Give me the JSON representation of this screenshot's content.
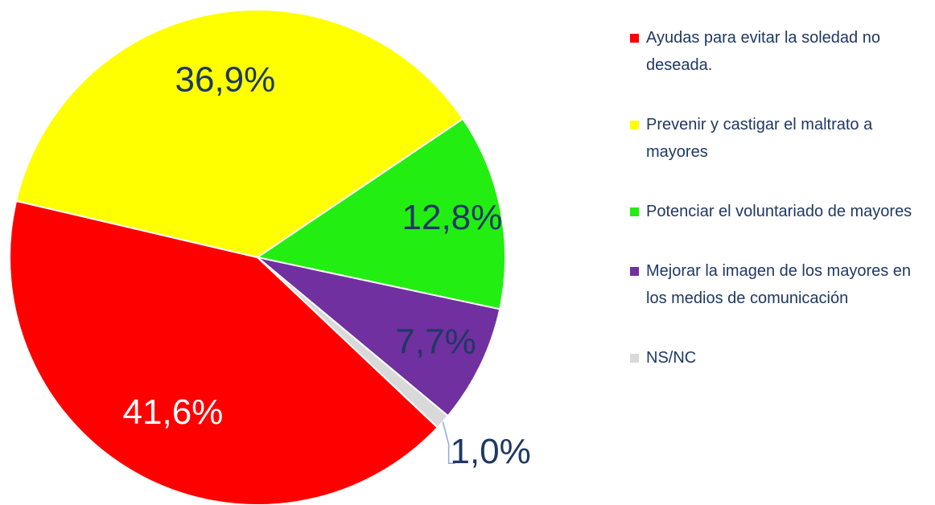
{
  "chart_data": {
    "type": "pie",
    "labels": [
      "Ayudas para evitar la soledad no deseada.",
      "Prevenir y castigar el maltrato a mayores",
      "Potenciar el voluntariado de mayores",
      "Mejorar la imagen de los mayores en los medios de comunicación",
      "NS/NC"
    ],
    "values": [
      41.6,
      36.9,
      12.8,
      7.7,
      1.0
    ],
    "value_labels": [
      "41,6%",
      "36,9%",
      "12,8%",
      "7,7%",
      "1,0%"
    ],
    "colors": [
      "#ff0000",
      "#ffff00",
      "#22ee11",
      "#7030a0",
      "#d9d9d9"
    ],
    "legend": "right"
  }
}
